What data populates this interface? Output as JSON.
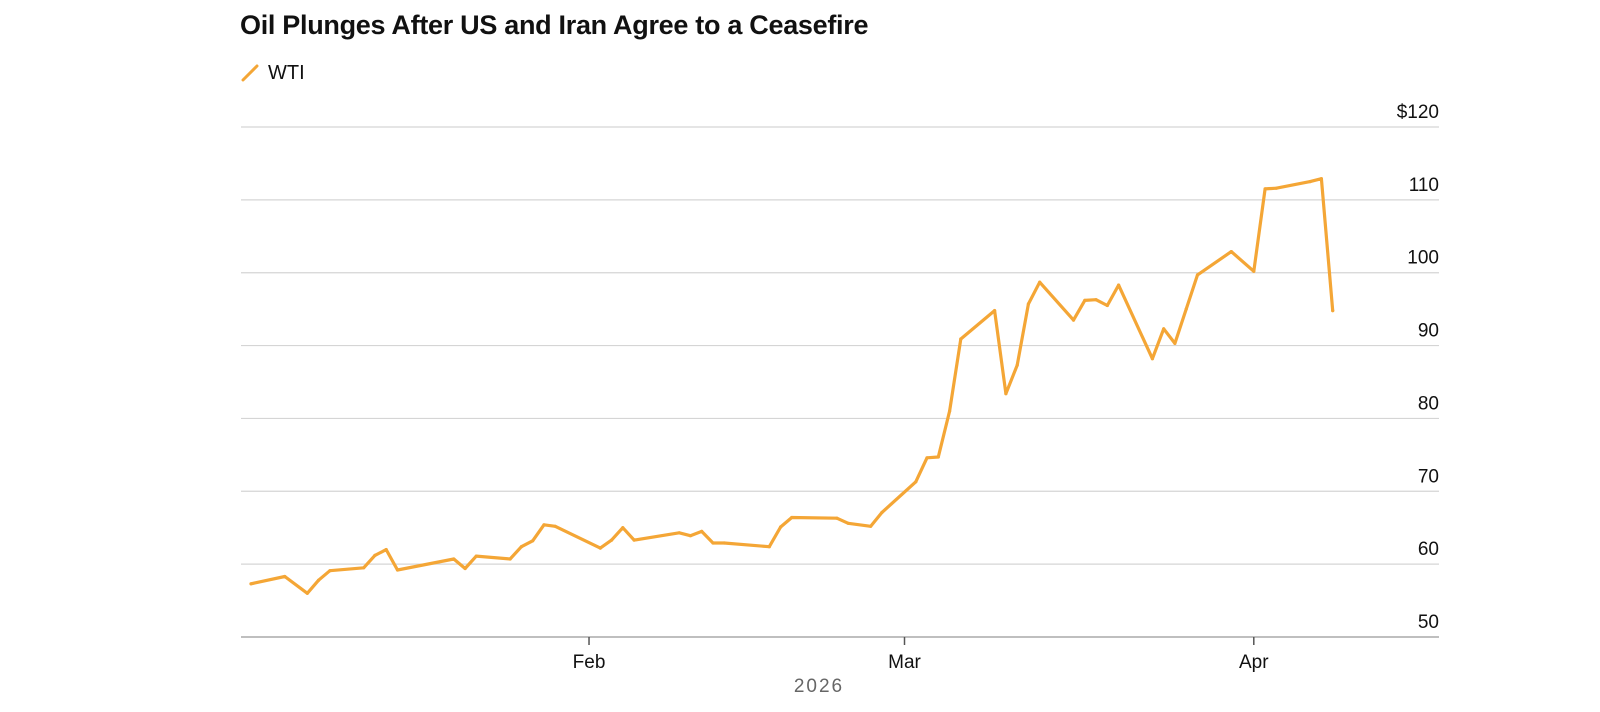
{
  "chart_data": {
    "type": "line",
    "title": "Oil Plunges After US and Iran Agree to a Ceasefire",
    "xlabel": "2026",
    "ylabel": "",
    "ylim": [
      50,
      120
    ],
    "y_ticks": [
      50,
      60,
      70,
      80,
      90,
      100,
      110,
      120
    ],
    "y_tick_labels": [
      "50",
      "60",
      "70",
      "80",
      "90",
      "100",
      "110",
      "$120"
    ],
    "x_range": [
      "2026-01-02",
      "2026-04-13"
    ],
    "x_ticks": [
      {
        "date": "2026-02-01",
        "label": "Feb"
      },
      {
        "date": "2026-03-01",
        "label": "Mar"
      },
      {
        "date": "2026-04-01",
        "label": "Apr"
      }
    ],
    "grid": true,
    "legend_position": "top-left",
    "colors": {
      "series": "#f4a636",
      "grid": "#d5d5d5",
      "axis": "#999999"
    },
    "series": [
      {
        "name": "WTI",
        "points": [
          [
            "2026-01-02",
            57.3
          ],
          [
            "2026-01-05",
            58.3
          ],
          [
            "2026-01-07",
            56.0
          ],
          [
            "2026-01-08",
            57.8
          ],
          [
            "2026-01-09",
            59.1
          ],
          [
            "2026-01-12",
            59.5
          ],
          [
            "2026-01-13",
            61.2
          ],
          [
            "2026-01-14",
            62.0
          ],
          [
            "2026-01-15",
            59.2
          ],
          [
            "2026-01-20",
            60.7
          ],
          [
            "2026-01-21",
            59.4
          ],
          [
            "2026-01-22",
            61.1
          ],
          [
            "2026-01-25",
            60.7
          ],
          [
            "2026-01-26",
            62.4
          ],
          [
            "2026-01-27",
            63.2
          ],
          [
            "2026-01-28",
            65.4
          ],
          [
            "2026-01-29",
            65.2
          ],
          [
            "2026-02-02",
            62.2
          ],
          [
            "2026-02-03",
            63.3
          ],
          [
            "2026-02-04",
            65.0
          ],
          [
            "2026-02-05",
            63.3
          ],
          [
            "2026-02-09",
            64.3
          ],
          [
            "2026-02-10",
            63.9
          ],
          [
            "2026-02-11",
            64.5
          ],
          [
            "2026-02-12",
            62.9
          ],
          [
            "2026-02-13",
            62.9
          ],
          [
            "2026-02-17",
            62.4
          ],
          [
            "2026-02-18",
            65.1
          ],
          [
            "2026-02-19",
            66.4
          ],
          [
            "2026-02-23",
            66.3
          ],
          [
            "2026-02-24",
            65.6
          ],
          [
            "2026-02-26",
            65.2
          ],
          [
            "2026-02-27",
            67.1
          ],
          [
            "2026-03-02",
            71.3
          ],
          [
            "2026-03-03",
            74.6
          ],
          [
            "2026-03-04",
            74.7
          ],
          [
            "2026-03-05",
            81.0
          ],
          [
            "2026-03-06",
            90.9
          ],
          [
            "2026-03-09",
            94.8
          ],
          [
            "2026-03-10",
            83.4
          ],
          [
            "2026-03-11",
            87.3
          ],
          [
            "2026-03-12",
            95.7
          ],
          [
            "2026-03-13",
            98.7
          ],
          [
            "2026-03-16",
            93.5
          ],
          [
            "2026-03-17",
            96.2
          ],
          [
            "2026-03-18",
            96.3
          ],
          [
            "2026-03-19",
            95.5
          ],
          [
            "2026-03-20",
            98.3
          ],
          [
            "2026-03-23",
            88.2
          ],
          [
            "2026-03-24",
            92.3
          ],
          [
            "2026-03-25",
            90.3
          ],
          [
            "2026-03-26",
            95.0
          ],
          [
            "2026-03-27",
            99.7
          ],
          [
            "2026-03-30",
            102.9
          ],
          [
            "2026-04-01",
            100.2
          ],
          [
            "2026-04-02",
            111.5
          ],
          [
            "2026-04-03",
            111.6
          ],
          [
            "2026-04-06",
            112.5
          ],
          [
            "2026-04-07",
            112.9
          ],
          [
            "2026-04-08",
            94.8
          ]
        ]
      }
    ]
  }
}
